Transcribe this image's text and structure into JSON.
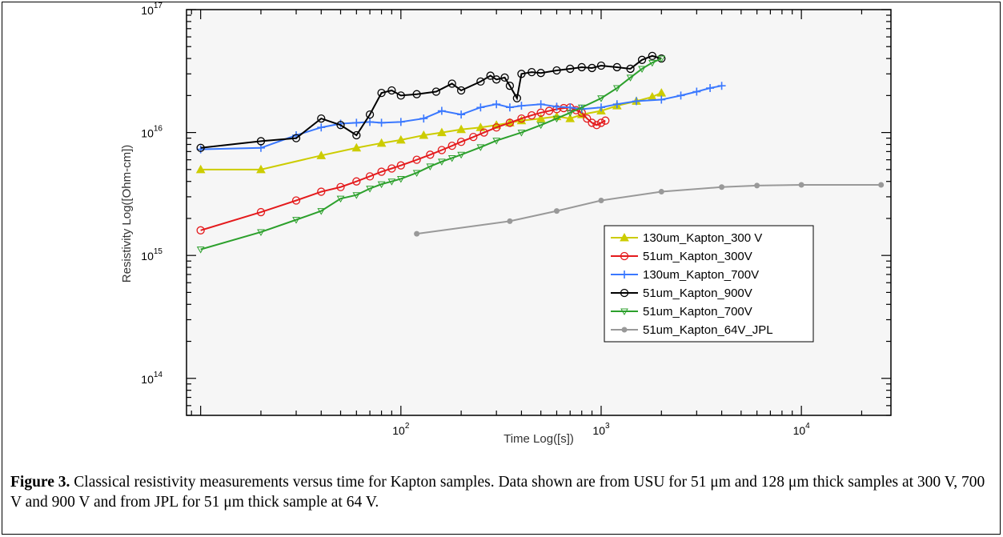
{
  "figure": {
    "caption_label": "Figure 3.",
    "caption_text": "Classical resistivity measurements versus time for Kapton samples.  Data shown are from USU for 51 μm and 128 μm thick samples at 300 V, 700 V and 900 V and from JPL for  51 μm thick sample at 64 V."
  },
  "chart_data": {
    "type": "line",
    "xlabel": "Time Log([s])",
    "ylabel": "Resistivity Log([Ohm-cm])",
    "x_scale": "log",
    "y_scale": "log",
    "xlim": [
      8.5,
      28000
    ],
    "ylim": [
      50000000000000.0,
      1e+17
    ],
    "x_ticks": [
      {
        "base": "10",
        "exp": "2",
        "value": 100
      },
      {
        "base": "10",
        "exp": "3",
        "value": 1000
      },
      {
        "base": "10",
        "exp": "4",
        "value": 10000
      }
    ],
    "y_ticks": [
      {
        "base": "10",
        "exp": "14",
        "value": 100000000000000.0
      },
      {
        "base": "10",
        "exp": "15",
        "value": 1000000000000000.0
      },
      {
        "base": "10",
        "exp": "16",
        "value": 1e+16
      },
      {
        "base": "10",
        "exp": "17",
        "value": 1e+17
      }
    ],
    "grid": false,
    "legend_position": "lower-right",
    "series": [
      {
        "name": "130um_Kapton_300 V",
        "color": "#cccc00",
        "marker": "triangle-up",
        "x": [
          10,
          20,
          40,
          60,
          80,
          100,
          130,
          160,
          200,
          250,
          300,
          350,
          400,
          500,
          600,
          700,
          800,
          1000,
          1200,
          1500,
          1800,
          2000
        ],
        "y": [
          5000000000000000.0,
          5000000000000000.0,
          6500000000000000.0,
          7500000000000000.0,
          8200000000000000.0,
          8700000000000000.0,
          9500000000000000.0,
          1e+16,
          1.06e+16,
          1.1e+16,
          1.15e+16,
          1.2e+16,
          1.25e+16,
          1.3e+16,
          1.35e+16,
          1.3e+16,
          1.4e+16,
          1.5e+16,
          1.65e+16,
          1.8e+16,
          1.95e+16,
          2.1e+16
        ]
      },
      {
        "name": "51um_Kapton_300V",
        "color": "#e41a1c",
        "marker": "circle-open",
        "x": [
          10,
          20,
          30,
          40,
          50,
          60,
          70,
          80,
          90,
          100,
          120,
          140,
          160,
          180,
          200,
          230,
          260,
          300,
          350,
          400,
          450,
          500,
          550,
          600,
          650,
          700,
          750,
          800,
          850,
          900,
          950,
          1000,
          1050
        ],
        "y": [
          1600000000000000.0,
          2250000000000000.0,
          2800000000000000.0,
          3300000000000000.0,
          3600000000000000.0,
          4000000000000000.0,
          4400000000000000.0,
          4800000000000000.0,
          5100000000000000.0,
          5400000000000000.0,
          6000000000000000.0,
          6600000000000000.0,
          7200000000000000.0,
          7800000000000000.0,
          8400000000000000.0,
          9200000000000000.0,
          1e+16,
          1.1e+16,
          1.2e+16,
          1.3e+16,
          1.38e+16,
          1.45e+16,
          1.5e+16,
          1.55e+16,
          1.58e+16,
          1.6e+16,
          1.52e+16,
          1.45e+16,
          1.3e+16,
          1.2e+16,
          1.15e+16,
          1.2e+16,
          1.25e+16
        ]
      },
      {
        "name": "130um_Kapton_700V",
        "color": "#3a78ff",
        "marker": "plus",
        "x": [
          10,
          20,
          30,
          40,
          50,
          60,
          70,
          80,
          100,
          130,
          160,
          200,
          250,
          300,
          350,
          400,
          500,
          600,
          700,
          800,
          1000,
          1200,
          1500,
          2000,
          2500,
          3000,
          3500,
          4000
        ],
        "y": [
          7300000000000000.0,
          7500000000000000.0,
          9500000000000000.0,
          1.1e+16,
          1.18e+16,
          1.2e+16,
          1.22e+16,
          1.2e+16,
          1.22e+16,
          1.3e+16,
          1.5e+16,
          1.4e+16,
          1.6e+16,
          1.7e+16,
          1.6e+16,
          1.65e+16,
          1.7e+16,
          1.62e+16,
          1.6e+16,
          1.55e+16,
          1.6e+16,
          1.7e+16,
          1.8e+16,
          1.85e+16,
          2e+16,
          2.15e+16,
          2.3e+16,
          2.4e+16
        ]
      },
      {
        "name": "51um_Kapton_900V",
        "color": "#000000",
        "marker": "circle-open",
        "x": [
          10,
          20,
          30,
          40,
          50,
          60,
          70,
          80,
          90,
          100,
          120,
          150,
          180,
          200,
          250,
          280,
          300,
          330,
          350,
          380,
          400,
          450,
          500,
          600,
          700,
          800,
          900,
          1000,
          1200,
          1400,
          1600,
          1800,
          2000
        ],
        "y": [
          7500000000000000.0,
          8500000000000000.0,
          9000000000000000.0,
          1.3e+16,
          1.15e+16,
          9500000000000000.0,
          1.4e+16,
          2.1e+16,
          2.2e+16,
          2e+16,
          2.05e+16,
          2.15e+16,
          2.5e+16,
          2.2e+16,
          2.6e+16,
          2.9e+16,
          2.7e+16,
          2.8e+16,
          2.4e+16,
          1.9e+16,
          3e+16,
          3.1e+16,
          3.05e+16,
          3.2e+16,
          3.3e+16,
          3.4e+16,
          3.35e+16,
          3.5e+16,
          3.4e+16,
          3.3e+16,
          3.9e+16,
          4.2e+16,
          4e+16
        ]
      },
      {
        "name": "51um_Kapton_700V",
        "color": "#2ca02c",
        "marker": "triangle-down-open",
        "x": [
          10,
          20,
          30,
          40,
          50,
          60,
          70,
          80,
          90,
          100,
          120,
          140,
          160,
          180,
          200,
          250,
          300,
          400,
          500,
          600,
          700,
          800,
          1000,
          1200,
          1400,
          1600,
          1800,
          2000
        ],
        "y": [
          1120000000000000.0,
          1550000000000000.0,
          1950000000000000.0,
          2300000000000000.0,
          2900000000000000.0,
          3100000000000000.0,
          3500000000000000.0,
          3800000000000000.0,
          4000000000000000.0,
          4200000000000000.0,
          4700000000000000.0,
          5300000000000000.0,
          5800000000000000.0,
          6200000000000000.0,
          6600000000000000.0,
          7600000000000000.0,
          8600000000000000.0,
          1e+16,
          1.15e+16,
          1.3e+16,
          1.45e+16,
          1.6e+16,
          1.9e+16,
          2.3e+16,
          2.8e+16,
          3.3e+16,
          3.7e+16,
          4e+16
        ]
      },
      {
        "name": "51um_Kapton_64V_JPL",
        "color": "#999999",
        "marker": "dot",
        "x": [
          120,
          350,
          600,
          1000,
          2000,
          4000,
          6000,
          10000,
          25000
        ],
        "y": [
          1500000000000000.0,
          1900000000000000.0,
          2300000000000000.0,
          2800000000000000.0,
          3300000000000000.0,
          3600000000000000.0,
          3700000000000000.0,
          3750000000000000.0,
          3750000000000000.0
        ]
      }
    ]
  }
}
